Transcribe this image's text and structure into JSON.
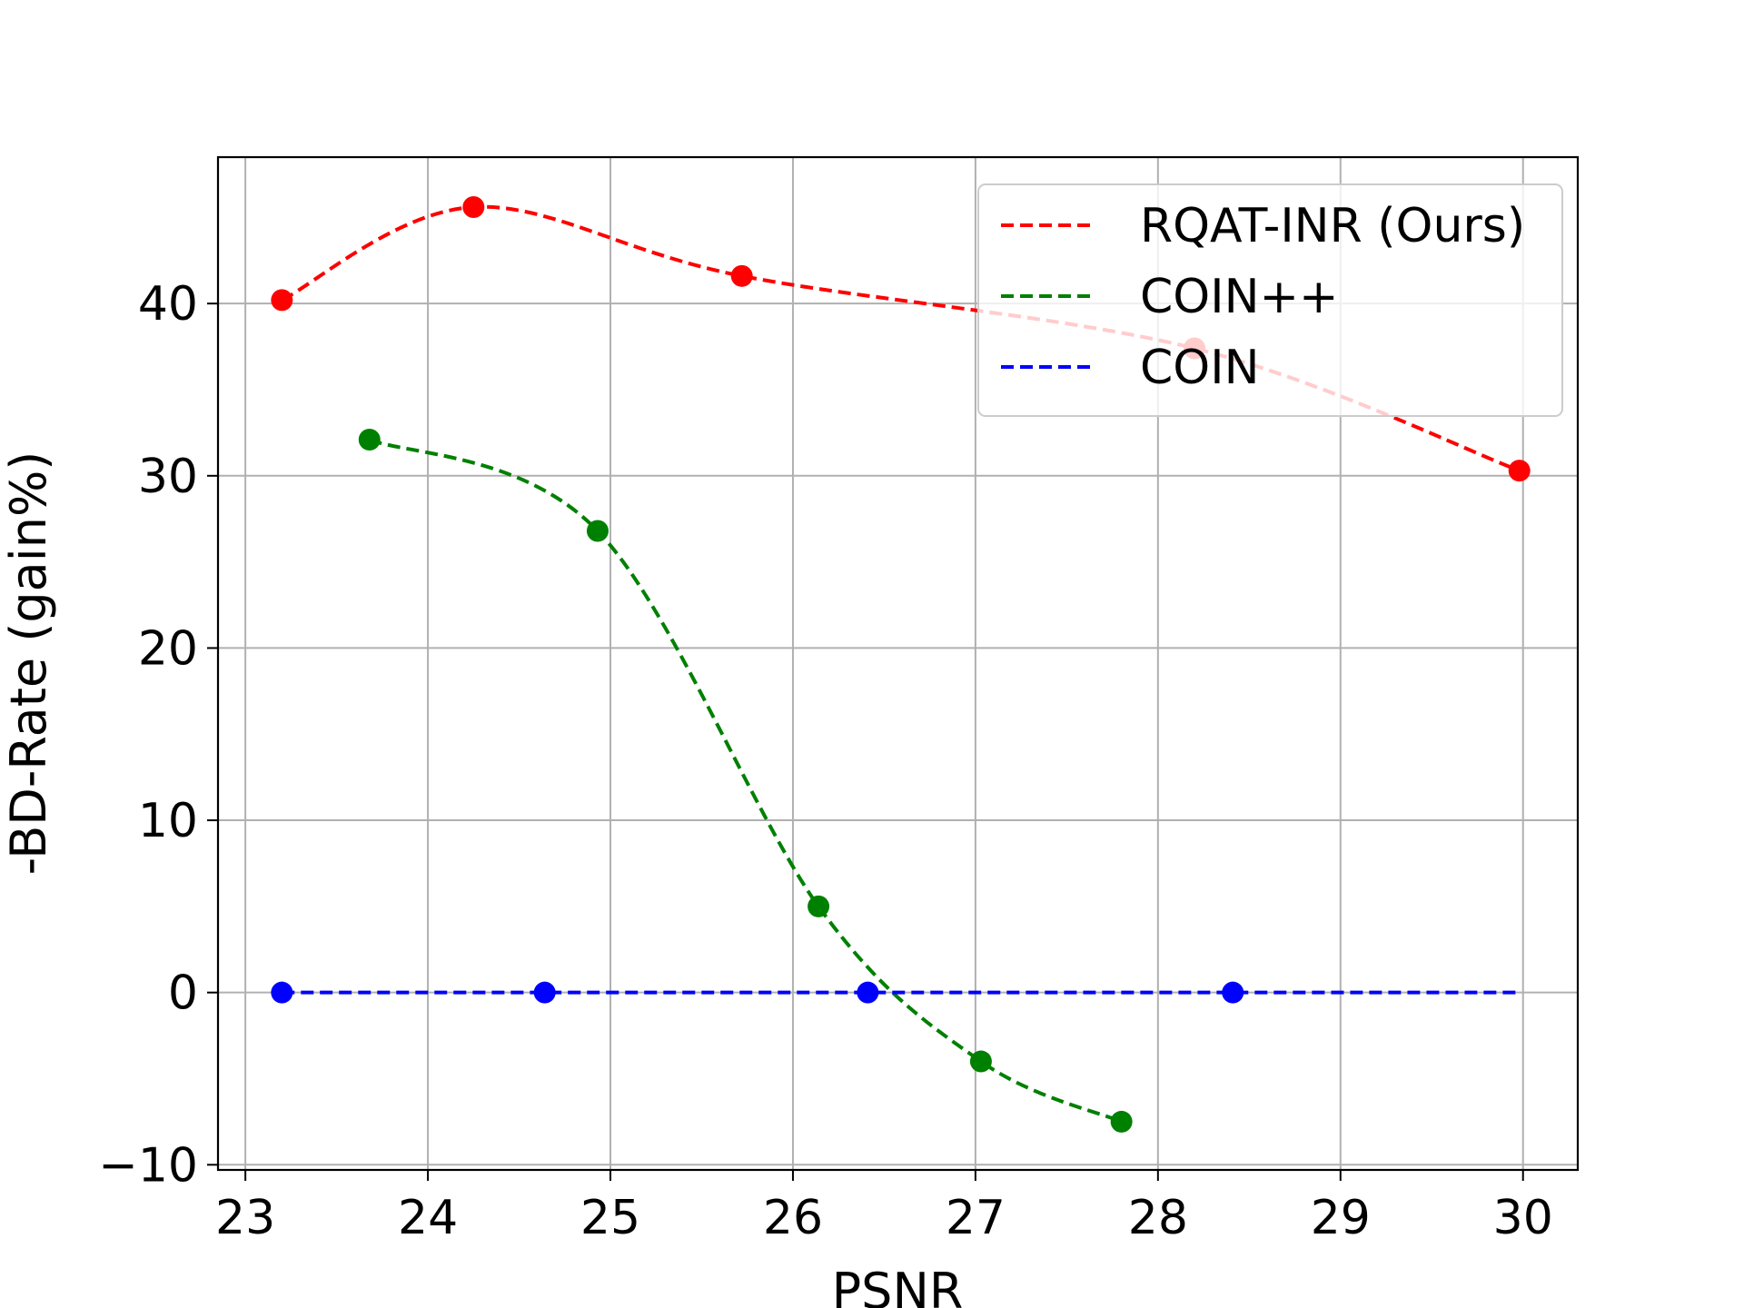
{
  "chart_data": {
    "type": "line",
    "title": "",
    "xlabel": "PSNR",
    "ylabel": "-BD-Rate (gain%)",
    "xlim": [
      22.85,
      30.3
    ],
    "ylim": [
      -10.3,
      48.5
    ],
    "xticks": [
      23,
      24,
      25,
      26,
      27,
      28,
      29,
      30
    ],
    "yticks": [
      -10,
      0,
      10,
      20,
      30,
      40
    ],
    "xtick_labels": [
      "23",
      "24",
      "25",
      "26",
      "27",
      "28",
      "29",
      "30"
    ],
    "ytick_labels": [
      "−10",
      "0",
      "10",
      "20",
      "30",
      "40"
    ],
    "grid": true,
    "legend_position": "top-right",
    "series": [
      {
        "name": "RQAT-INR (Ours)",
        "color": "#ff0000",
        "line_style": "dashed",
        "x": [
          23.2,
          24.25,
          25.72,
          28.2,
          29.98
        ],
        "y": [
          40.2,
          45.6,
          41.6,
          37.4,
          30.3
        ]
      },
      {
        "name": "COIN++",
        "color": "#008000",
        "line_style": "dashed",
        "x": [
          23.68,
          24.93,
          26.14,
          27.03,
          27.8
        ],
        "y": [
          32.1,
          26.8,
          5.0,
          -4.0,
          -7.5
        ]
      },
      {
        "name": "COIN",
        "color": "#0000ff",
        "line_style": "dashed",
        "x": [
          23.2,
          24.64,
          26.41,
          28.41,
          29.98
        ],
        "y": [
          0.0,
          0.0,
          0.0,
          0.0,
          0.0
        ],
        "marker_count": 4
      }
    ]
  }
}
